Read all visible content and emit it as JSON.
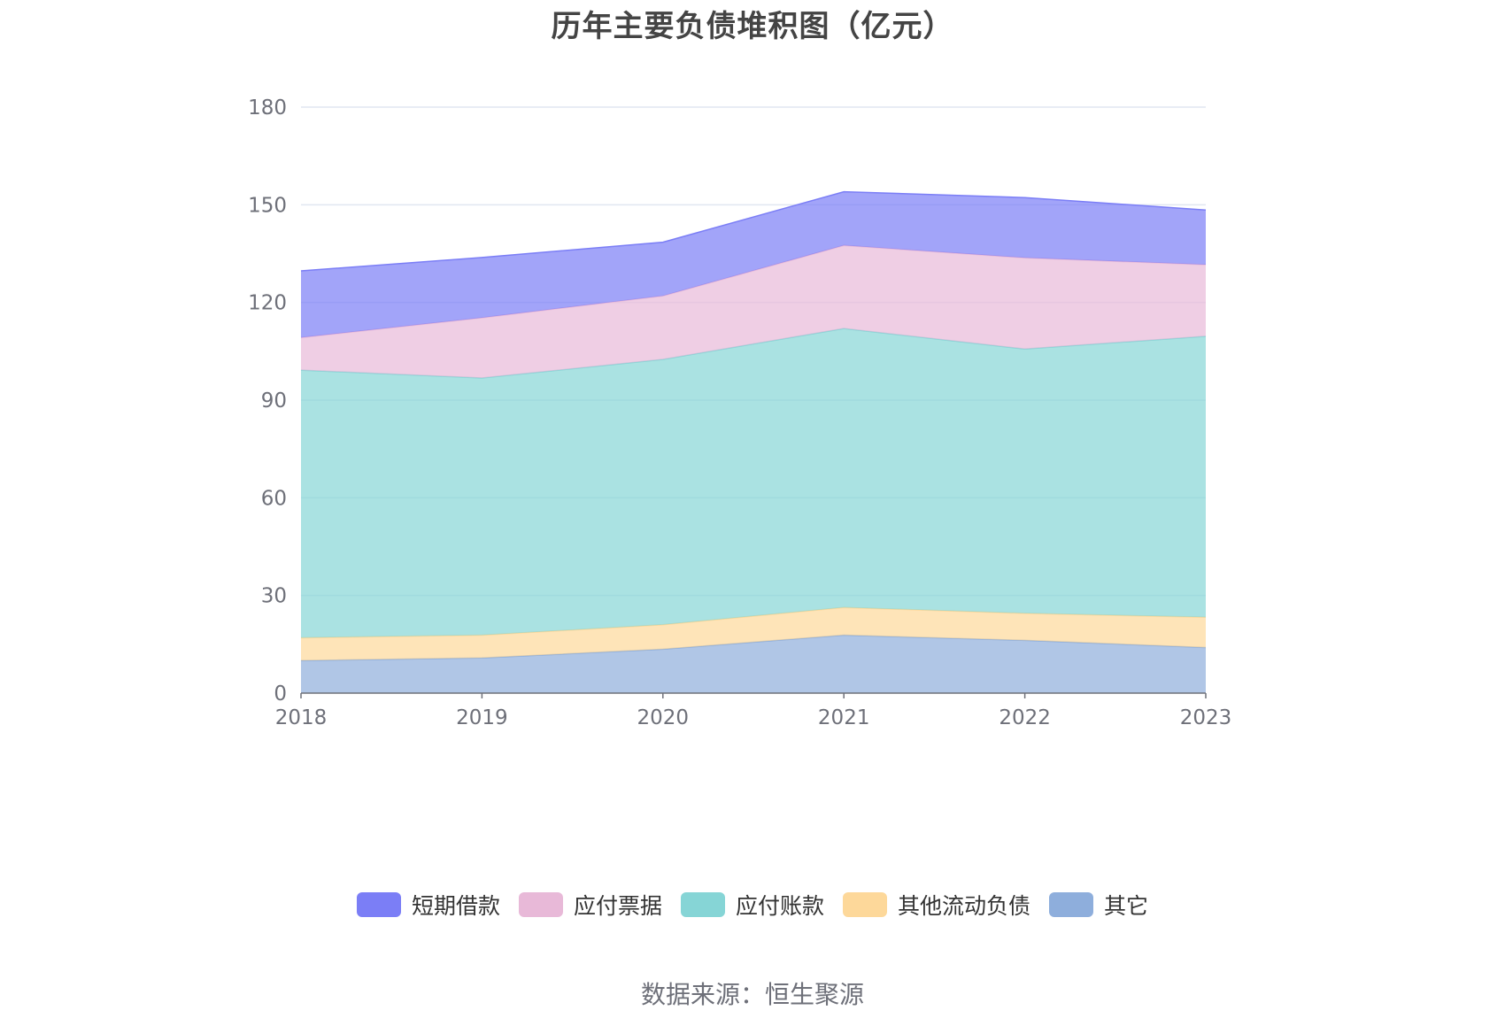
{
  "chart_data": {
    "type": "area",
    "stacked": true,
    "title": "历年主要负债堆积图（亿元）",
    "x": [
      "2018",
      "2019",
      "2020",
      "2021",
      "2022",
      "2023"
    ],
    "ylim": [
      0,
      180
    ],
    "yticks": [
      0,
      30,
      60,
      90,
      120,
      150,
      180
    ],
    "grid": true,
    "legend_position": "bottom",
    "series": [
      {
        "name": "其它",
        "color": "#8eaedc",
        "values": [
          10,
          10.8,
          13.5,
          17.8,
          16.2,
          14
        ]
      },
      {
        "name": "其他流动负债",
        "color": "#fdd89a",
        "values": [
          7,
          7,
          7.5,
          8.5,
          8.3,
          9.3
        ]
      },
      {
        "name": "应付账款",
        "color": "#86d5d6",
        "values": [
          82.2,
          79,
          81.5,
          85.7,
          81.2,
          86.3
        ]
      },
      {
        "name": "应付票据",
        "color": "#e8b9d8",
        "values": [
          10,
          18.5,
          19.5,
          25.5,
          28,
          22
        ]
      },
      {
        "name": "短期借款",
        "color": "#7b7ef6",
        "values": [
          20.5,
          18.5,
          16.5,
          16.5,
          18.5,
          16.8
        ]
      }
    ]
  },
  "legend_order": [
    "短期借款",
    "应付票据",
    "应付账款",
    "其他流动负债",
    "其它"
  ],
  "source_note": "数据来源：恒生聚源"
}
